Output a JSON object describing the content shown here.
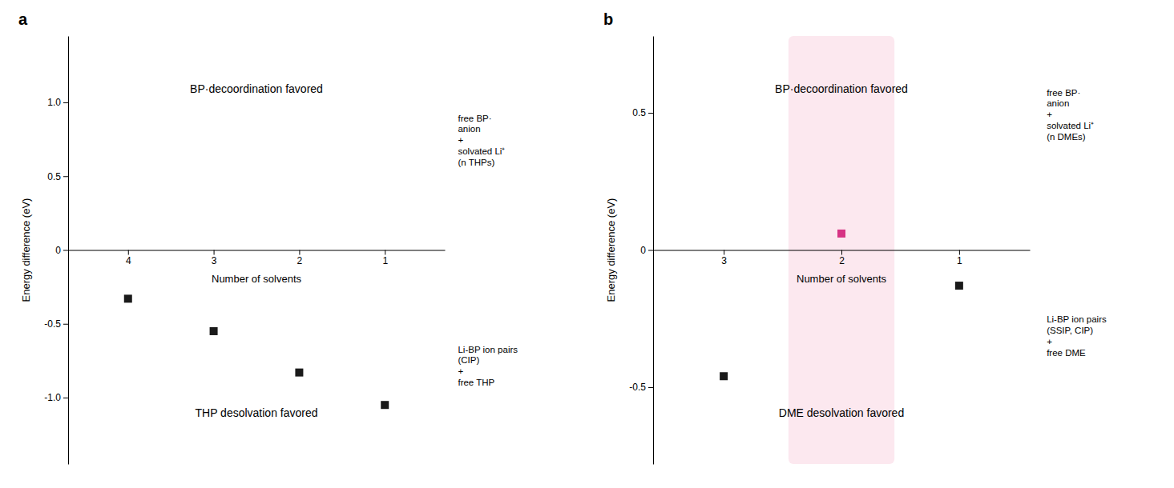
{
  "chart_data": [
    {
      "type": "scatter",
      "title": "a",
      "x_label": "Number of solvents",
      "y_label": "Energy difference (eV)",
      "annotations": [
        "BP·decoordination favored",
        "THP desolvation favored",
        "free BP·\nanion\n+\nsolvated Li⁺\n(n THPs)",
        "Li-BP ion pairs\n(CIP)\n+\nfree THP"
      ],
      "xlim": [
        4.7,
        0.3
      ],
      "xticks": [
        4,
        3,
        2,
        1
      ],
      "ylim": [
        -1.45,
        1.45
      ],
      "yticks": [
        {
          "value": -1.0,
          "label": "-1.0"
        },
        -0.5,
        0,
        0.5,
        {
          "value": 1.0,
          "label": "1.0"
        }
      ],
      "grid": false,
      "series": [
        {
          "x": [
            4,
            3,
            2,
            1
          ],
          "values": [
            -0.33,
            -0.55,
            -0.83,
            -1.05
          ],
          "color": "#1a1a1a",
          "marker": "square"
        }
      ]
    },
    {
      "type": "scatter",
      "title": "b",
      "x_label": "Number of solvents",
      "y_label": "Energy difference (eV)",
      "annotations": [
        "BP·decoordination favored",
        "DME desolvation favored",
        "free BP·\nanion\n+\nsolvated Li⁺\n(n DMEs)",
        "Li-BP ion pairs\n(SSIP, CIP)\n+\nfree DME"
      ],
      "xlim": [
        3.6,
        0.4
      ],
      "xticks": [
        3,
        2,
        1
      ],
      "ylim": [
        -0.78,
        0.78
      ],
      "yticks": [
        -0.5,
        0,
        0.5
      ],
      "grid": false,
      "highlight_x": [
        1.55,
        2.45
      ],
      "highlight_color": "#fce4ec",
      "series": [
        {
          "x": [
            3,
            1
          ],
          "values": [
            -0.46,
            -0.13
          ],
          "color": "#1a1a1a",
          "marker": "square"
        },
        {
          "x": [
            2
          ],
          "values": [
            0.06
          ],
          "color": "#d63384",
          "marker": "square"
        }
      ]
    }
  ]
}
